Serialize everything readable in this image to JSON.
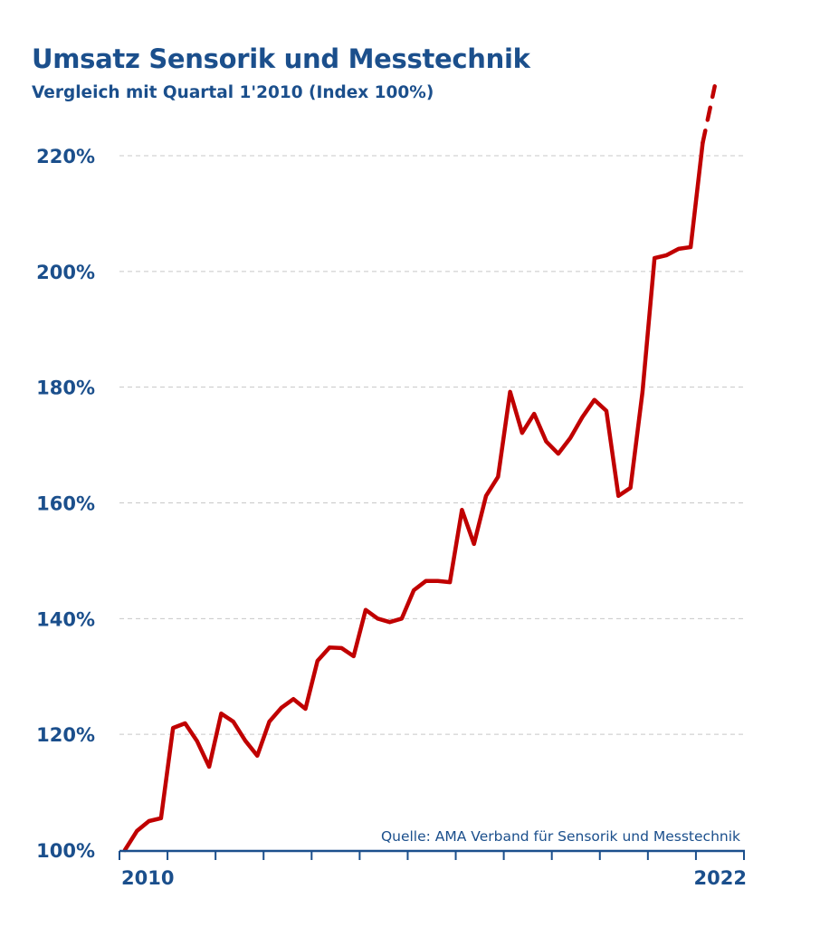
{
  "chart_data": {
    "type": "line",
    "title": "Umsatz Sensorik und Messtechnik",
    "subtitle": "Vergleich mit Quartal 1'2010 (Index 100%)",
    "source": "Quelle: AMA Verband für Sensorik und Messtechnik",
    "x_tick_labels": [
      "2010",
      "2022"
    ],
    "y_ticks": [
      100,
      120,
      140,
      160,
      180,
      200,
      220
    ],
    "y_tick_labels": [
      "100%",
      "120%",
      "140%",
      "160%",
      "180%",
      "200%",
      "220%"
    ],
    "ylim": [
      100,
      235
    ],
    "grid": "horizontal dashed",
    "x_period": "quarterly",
    "series": [
      {
        "style": "solid",
        "color": "#c00000",
        "values": [
          100.0,
          103.3,
          105.0,
          105.5,
          121.1,
          121.9,
          118.8,
          114.4,
          123.6,
          122.2,
          118.9,
          116.3,
          122.2,
          124.6,
          126.1,
          124.4,
          132.7,
          135.0,
          134.9,
          133.5,
          141.5,
          140.0,
          139.4,
          140.0,
          144.9,
          146.5,
          146.5,
          146.3,
          158.8,
          152.9,
          161.2,
          164.5,
          179.2,
          172.1,
          175.4,
          170.6,
          168.5,
          171.2,
          174.8,
          177.8,
          175.9,
          161.2,
          162.6,
          179.2,
          202.3,
          202.8,
          203.9,
          204.2,
          222.2
        ]
      },
      {
        "style": "dashed",
        "color": "#c00000",
        "start_index": 48,
        "values": [
          222.2,
          232.0
        ]
      }
    ]
  }
}
